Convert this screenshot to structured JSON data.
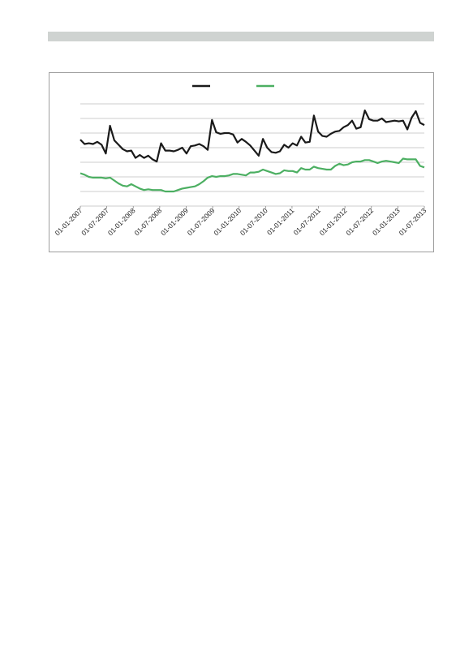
{
  "colors": {
    "series_black": "#1a1a1a",
    "series_green": "#4caf62",
    "gridline": "#bdbdbd",
    "header_bar": "#cfd3d1"
  },
  "chart_data": {
    "type": "line",
    "title": "",
    "xlabel": "",
    "ylabel": "",
    "legend_position": "top-center",
    "grid": true,
    "ylim": [
      0,
      7
    ],
    "y_ticks": [
      0,
      1,
      2,
      3,
      4,
      5,
      6,
      7
    ],
    "x_tick_labels": [
      "01-01-2007",
      "01-07-2007",
      "01-01-2008",
      "01-07-2008",
      "01-01-2009",
      "01-07-2009",
      "01-01-2010",
      "01-07-2010",
      "01-01-2011",
      "01-07-2011",
      "01-01-2012",
      "01-07-2012",
      "01-01-2013",
      "01-07-2013"
    ],
    "series": [
      {
        "color": "#1a1a1a",
        "values": [
          4.55,
          4.25,
          4.3,
          4.25,
          4.4,
          4.2,
          3.6,
          5.5,
          4.5,
          4.2,
          3.9,
          3.75,
          3.8,
          3.3,
          3.5,
          3.3,
          3.45,
          3.2,
          3.05,
          4.3,
          3.8,
          3.8,
          3.75,
          3.85,
          4.0,
          3.6,
          4.1,
          4.15,
          4.25,
          4.1,
          3.85,
          5.9,
          5.05,
          4.95,
          5.0,
          5.0,
          4.9,
          4.35,
          4.6,
          4.4,
          4.15,
          3.8,
          3.45,
          4.6,
          4.0,
          3.7,
          3.65,
          3.75,
          4.2,
          4.0,
          4.3,
          4.15,
          4.75,
          4.35,
          4.4,
          6.2,
          5.1,
          4.8,
          4.75,
          4.95,
          5.1,
          5.15,
          5.4,
          5.55,
          5.85,
          5.3,
          5.4,
          6.55,
          5.95,
          5.85,
          5.85,
          6.0,
          5.75,
          5.8,
          5.85,
          5.8,
          5.85,
          5.25,
          6.05,
          6.5,
          5.7,
          5.55
        ]
      },
      {
        "color": "#4caf62",
        "values": [
          2.25,
          2.15,
          2.0,
          1.95,
          1.95,
          1.95,
          1.9,
          1.95,
          1.75,
          1.55,
          1.4,
          1.35,
          1.5,
          1.35,
          1.2,
          1.1,
          1.15,
          1.1,
          1.1,
          1.1,
          1.0,
          1.0,
          1.0,
          1.1,
          1.2,
          1.25,
          1.3,
          1.35,
          1.5,
          1.7,
          1.95,
          2.05,
          2.0,
          2.05,
          2.05,
          2.1,
          2.2,
          2.2,
          2.15,
          2.1,
          2.3,
          2.3,
          2.35,
          2.5,
          2.4,
          2.3,
          2.2,
          2.25,
          2.45,
          2.4,
          2.4,
          2.3,
          2.6,
          2.5,
          2.5,
          2.7,
          2.6,
          2.55,
          2.5,
          2.5,
          2.75,
          2.9,
          2.8,
          2.85,
          3.0,
          3.05,
          3.05,
          3.15,
          3.15,
          3.05,
          2.95,
          3.05,
          3.1,
          3.05,
          3.0,
          2.95,
          3.25,
          3.2,
          3.2,
          3.2,
          2.75,
          2.65
        ]
      }
    ]
  }
}
